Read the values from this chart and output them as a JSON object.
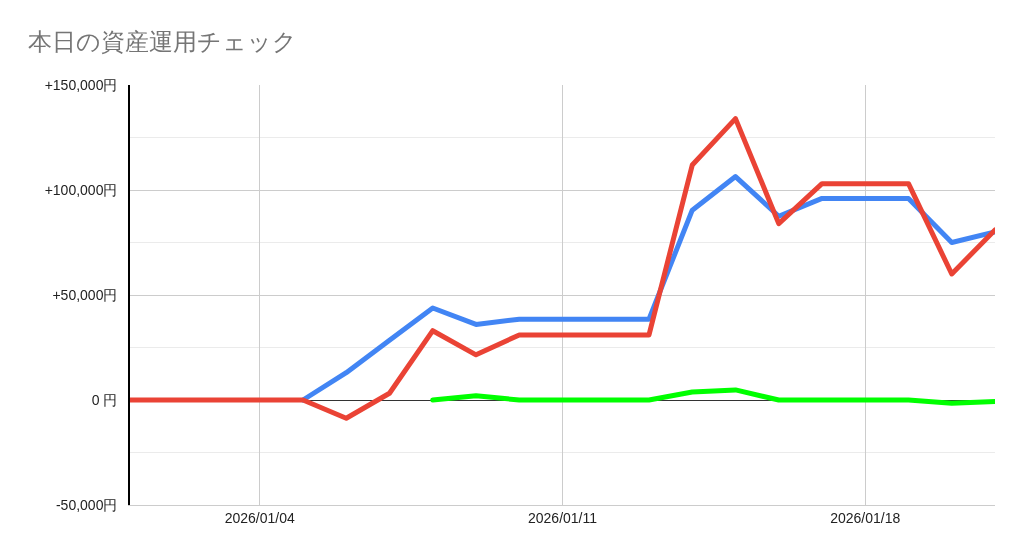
{
  "chart_data": {
    "type": "line",
    "title": "本日の資産運用チェック",
    "x": [
      "2026-01-01",
      "2026-01-02",
      "2026-01-03",
      "2026-01-04",
      "2026-01-05",
      "2026-01-06",
      "2026-01-07",
      "2026-01-08",
      "2026-01-09",
      "2026-01-10",
      "2026-01-11",
      "2026-01-12",
      "2026-01-13",
      "2026-01-14",
      "2026-01-15",
      "2026-01-16",
      "2026-01-17",
      "2026-01-18",
      "2026-01-19",
      "2026-01-20",
      "2026-01-21"
    ],
    "series": [
      {
        "color": "#4285f4",
        "values": [
          null,
          null,
          null,
          null,
          0,
          13000,
          28500,
          43800,
          36000,
          38500,
          38500,
          38500,
          38500,
          90400,
          106400,
          87500,
          96000,
          96000,
          96000,
          75000,
          80000
        ]
      },
      {
        "color": "#ea4335",
        "values": [
          0,
          0,
          0,
          0,
          0,
          -8700,
          3200,
          33000,
          21500,
          31000,
          31000,
          31000,
          31000,
          111900,
          134000,
          84000,
          103000,
          103000,
          103000,
          60000,
          81000
        ]
      },
      {
        "color": "#00ff00",
        "values": [
          null,
          null,
          null,
          null,
          null,
          null,
          null,
          0,
          2000,
          0,
          0,
          0,
          0,
          3800,
          4800,
          0,
          0,
          0,
          0,
          -1600,
          -700
        ]
      }
    ],
    "xlim": [
      "2026-01-01",
      "2026-01-21"
    ],
    "xticks": [
      {
        "value": "2026-01-04",
        "label": "2026/01/04"
      },
      {
        "value": "2026-01-11",
        "label": "2026/01/11"
      },
      {
        "value": "2026-01-18",
        "label": "2026/01/18"
      }
    ],
    "ylim": [
      -50000,
      150000
    ],
    "yticks": [
      {
        "value": -50000,
        "label": "-50,000円"
      },
      {
        "value": -25000,
        "label": null
      },
      {
        "value": 0,
        "label": "0 円"
      },
      {
        "value": 25000,
        "label": null
      },
      {
        "value": 50000,
        "label": "+50,000円"
      },
      {
        "value": 75000,
        "label": null
      },
      {
        "value": 100000,
        "label": "+100,000円"
      },
      {
        "value": 125000,
        "label": null
      },
      {
        "value": 150000,
        "label": "+150,000円"
      }
    ],
    "grid": true,
    "marker": "none",
    "line_style": "solid"
  }
}
